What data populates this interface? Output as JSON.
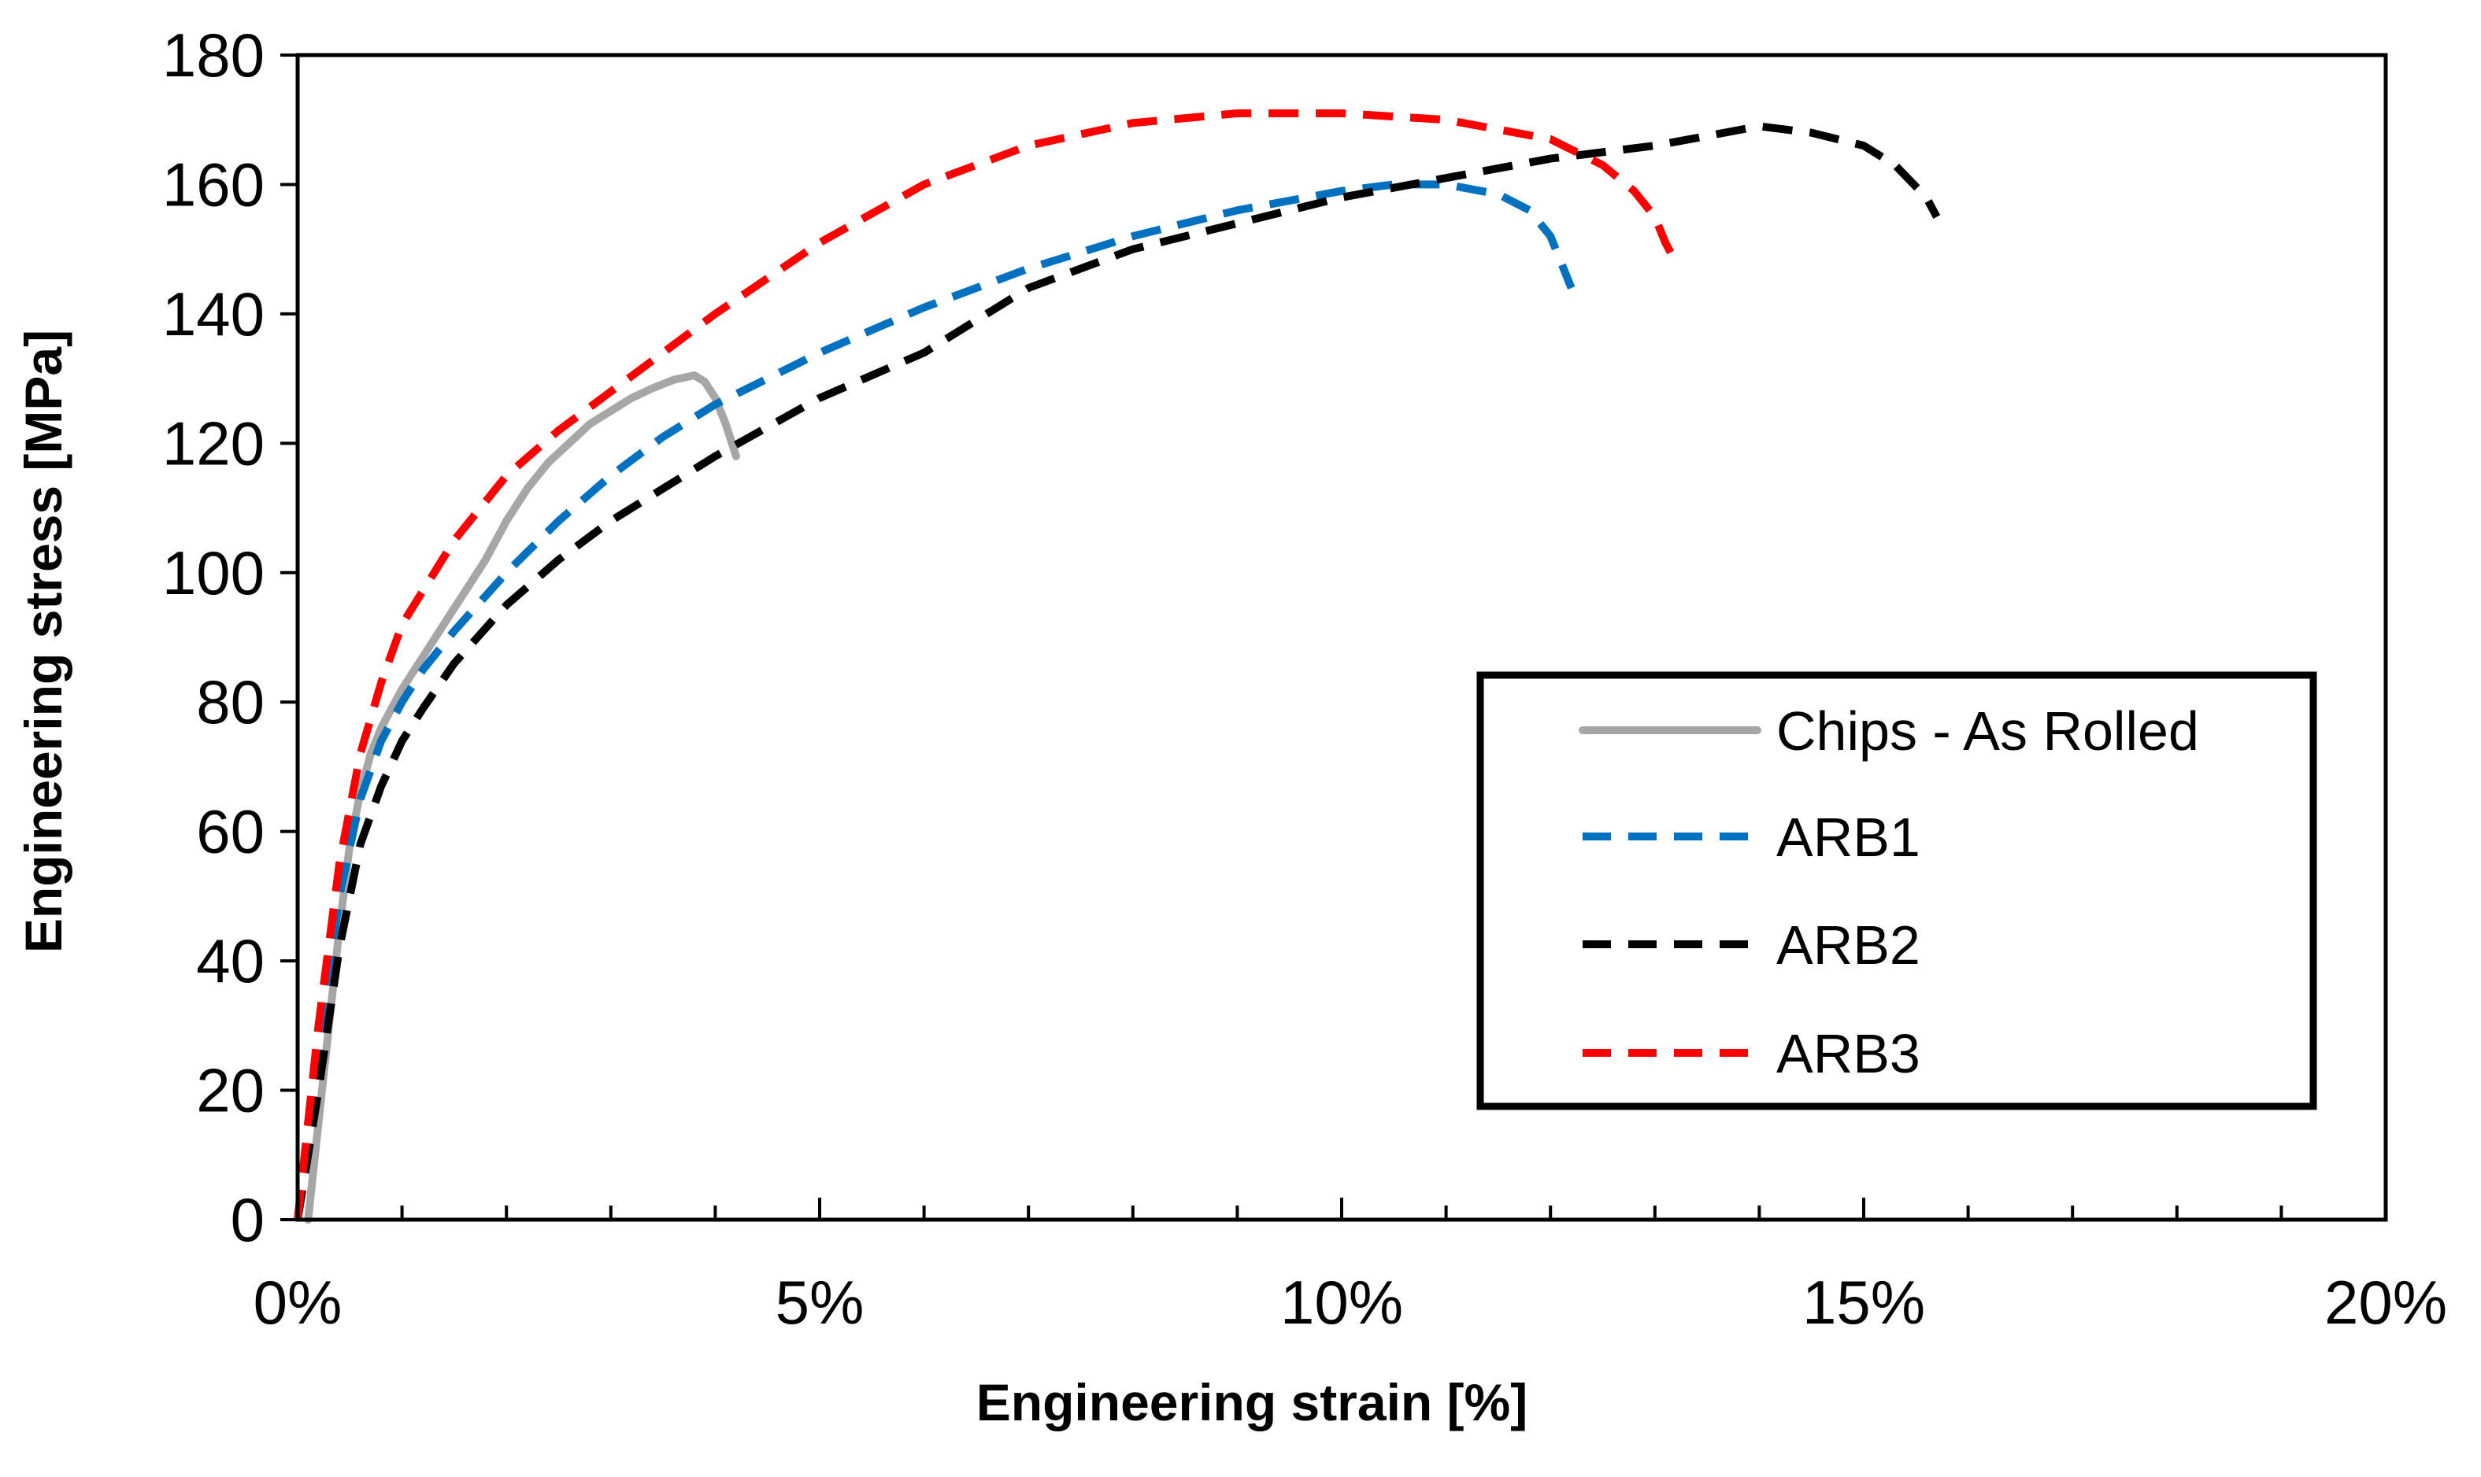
{
  "chart_data": {
    "type": "line",
    "title": "",
    "xlabel": "Engineering strain [%]",
    "ylabel": "Engineering stress [MPa]",
    "xlim": [
      0,
      20
    ],
    "ylim": [
      0,
      180
    ],
    "xticks": [
      0,
      5,
      10,
      15,
      20
    ],
    "xtick_labels": [
      "0%",
      "5%",
      "10%",
      "15%",
      "20%"
    ],
    "xminor_step": 1,
    "yticks": [
      0,
      20,
      40,
      60,
      80,
      100,
      120,
      140,
      160,
      180
    ],
    "ytick_labels": [
      "0",
      "20",
      "40",
      "60",
      "80",
      "100",
      "120",
      "140",
      "160",
      "180"
    ],
    "grid": false,
    "legend_position": "bottom-right",
    "series": [
      {
        "name": "Chips - As Rolled",
        "color": "#a6a6a6",
        "style": "solid",
        "x": [
          0.1,
          0.2,
          0.3,
          0.4,
          0.5,
          0.6,
          0.7,
          0.8,
          0.9,
          1.0,
          1.2,
          1.4,
          1.6,
          1.8,
          2.0,
          2.2,
          2.4,
          2.6,
          2.8,
          3.0,
          3.2,
          3.4,
          3.6,
          3.8,
          3.9,
          4.0,
          4.1,
          4.2
        ],
        "y": [
          0,
          15,
          30,
          45,
          58,
          66,
          72,
          76,
          79,
          82,
          87,
          92,
          97,
          102,
          108,
          113,
          117,
          120,
          123,
          125,
          127,
          128.5,
          129.8,
          130.5,
          129.5,
          127,
          123,
          118
        ]
      },
      {
        "name": "ARB1",
        "color": "#0070c0",
        "style": "dashed",
        "x": [
          0,
          0.2,
          0.4,
          0.6,
          0.8,
          1.0,
          1.2,
          1.5,
          2.0,
          2.5,
          3.0,
          3.5,
          4.0,
          5.0,
          6.0,
          7.0,
          8.0,
          9.0,
          10.0,
          10.5,
          11.0,
          11.5,
          11.8,
          12.0,
          12.1,
          12.2
        ],
        "y": [
          0,
          25,
          50,
          65,
          74,
          80,
          85,
          91,
          100,
          108,
          115,
          121,
          126,
          134,
          141,
          147,
          152,
          156,
          159,
          160,
          160,
          158.5,
          156,
          152,
          148,
          144
        ]
      },
      {
        "name": "ARB2",
        "color": "#000000",
        "style": "dashed",
        "x": [
          0,
          0.2,
          0.4,
          0.6,
          0.8,
          1.0,
          1.2,
          1.5,
          2.0,
          2.5,
          3.0,
          3.5,
          4.0,
          5.0,
          6.0,
          7.0,
          8.0,
          9.0,
          10.0,
          11.0,
          12.0,
          13.0,
          13.5,
          14.0,
          14.5,
          15.0,
          15.3,
          15.6,
          15.7
        ],
        "y": [
          0,
          20,
          42,
          58,
          67,
          74,
          79,
          86,
          95,
          102,
          108,
          113,
          118,
          127,
          134,
          144,
          150,
          154,
          158,
          161,
          164,
          166,
          167.5,
          169,
          168,
          166,
          163,
          158,
          155
        ]
      },
      {
        "name": "ARB3",
        "color": "#ff0000",
        "style": "dashed",
        "x": [
          0,
          0.2,
          0.4,
          0.6,
          0.8,
          1.0,
          1.5,
          2.0,
          2.5,
          3.0,
          3.5,
          4.0,
          5.0,
          6.0,
          7.0,
          8.0,
          9.0,
          10.0,
          11.0,
          12.0,
          12.5,
          12.8,
          13.0,
          13.1,
          13.2
        ],
        "y": [
          0,
          30,
          55,
          72,
          83,
          92,
          105,
          115,
          122,
          128,
          134,
          140,
          151,
          160,
          166,
          169.5,
          171,
          171,
          170,
          167,
          163,
          159,
          155,
          151,
          148
        ]
      }
    ]
  }
}
